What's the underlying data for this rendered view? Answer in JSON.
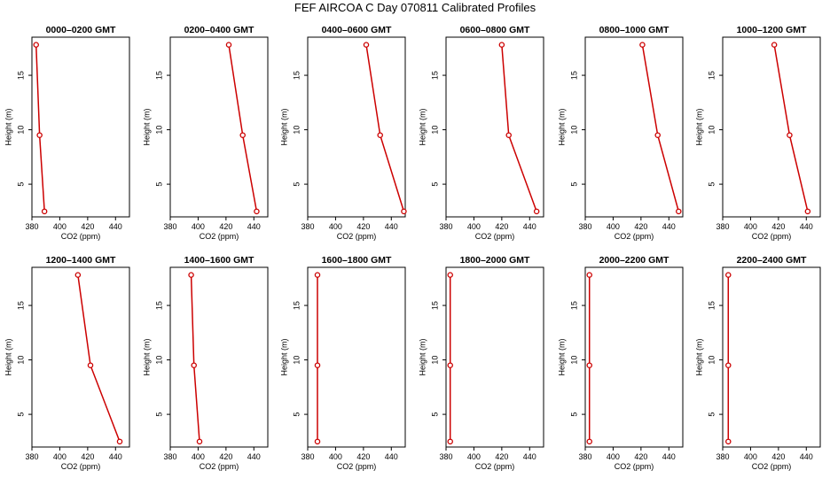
{
  "title": "FEF AIRCOA C  Day 070811  Calibrated Profiles",
  "colors": {
    "profile": "#cc0000",
    "axis": "#000000"
  },
  "chart_data": [
    {
      "type": "line",
      "title": "0000–0200 GMT",
      "xlabel": "CO2 (ppm)",
      "ylabel": "Height (m)",
      "xlim": [
        380,
        450
      ],
      "ylim": [
        2,
        18.5
      ],
      "xticks": [
        380,
        400,
        420,
        440
      ],
      "yticks": [
        5,
        10,
        15
      ],
      "heights": [
        2.5,
        9.5,
        17.8
      ],
      "values": [
        389,
        385.5,
        383
      ]
    },
    {
      "type": "line",
      "title": "0200–0400 GMT",
      "xlabel": "CO2 (ppm)",
      "ylabel": "Height (m)",
      "xlim": [
        380,
        450
      ],
      "ylim": [
        2,
        18.5
      ],
      "xticks": [
        380,
        400,
        420,
        440
      ],
      "yticks": [
        5,
        10,
        15
      ],
      "heights": [
        2.5,
        9.5,
        17.8
      ],
      "values": [
        442,
        432,
        422
      ]
    },
    {
      "type": "line",
      "title": "0400–0600 GMT",
      "xlabel": "CO2 (ppm)",
      "ylabel": "Height (m)",
      "xlim": [
        380,
        450
      ],
      "ylim": [
        2,
        18.5
      ],
      "xticks": [
        380,
        400,
        420,
        440
      ],
      "yticks": [
        5,
        10,
        15
      ],
      "heights": [
        2.5,
        9.5,
        17.8
      ],
      "values": [
        449,
        432,
        422
      ]
    },
    {
      "type": "line",
      "title": "0600–0800 GMT",
      "xlabel": "CO2 (ppm)",
      "ylabel": "Height (m)",
      "xlim": [
        380,
        450
      ],
      "ylim": [
        2,
        18.5
      ],
      "xticks": [
        380,
        400,
        420,
        440
      ],
      "yticks": [
        5,
        10,
        15
      ],
      "heights": [
        2.5,
        9.5,
        17.8
      ],
      "values": [
        445,
        425,
        420
      ]
    },
    {
      "type": "line",
      "title": "0800–1000 GMT",
      "xlabel": "CO2 (ppm)",
      "ylabel": "Height (m)",
      "xlim": [
        380,
        450
      ],
      "ylim": [
        2,
        18.5
      ],
      "xticks": [
        380,
        400,
        420,
        440
      ],
      "yticks": [
        5,
        10,
        15
      ],
      "heights": [
        2.5,
        9.5,
        17.8
      ],
      "values": [
        447,
        432,
        421
      ]
    },
    {
      "type": "line",
      "title": "1000–1200 GMT",
      "xlabel": "CO2 (ppm)",
      "ylabel": "Height (m)",
      "xlim": [
        380,
        450
      ],
      "ylim": [
        2,
        18.5
      ],
      "xticks": [
        380,
        400,
        420,
        440
      ],
      "yticks": [
        5,
        10,
        15
      ],
      "heights": [
        2.5,
        9.5,
        17.8
      ],
      "values": [
        441,
        428,
        417
      ]
    },
    {
      "type": "line",
      "title": "1200–1400 GMT",
      "xlabel": "CO2 (ppm)",
      "ylabel": "Height (m)",
      "xlim": [
        380,
        450
      ],
      "ylim": [
        2,
        18.5
      ],
      "xticks": [
        380,
        400,
        420,
        440
      ],
      "yticks": [
        5,
        10,
        15
      ],
      "heights": [
        2.5,
        9.5,
        17.8
      ],
      "values": [
        443,
        422,
        413
      ]
    },
    {
      "type": "line",
      "title": "1400–1600 GMT",
      "xlabel": "CO2 (ppm)",
      "ylabel": "Height (m)",
      "xlim": [
        380,
        450
      ],
      "ylim": [
        2,
        18.5
      ],
      "xticks": [
        380,
        400,
        420,
        440
      ],
      "yticks": [
        5,
        10,
        15
      ],
      "heights": [
        2.5,
        9.5,
        17.8
      ],
      "values": [
        401,
        397,
        395
      ]
    },
    {
      "type": "line",
      "title": "1600–1800 GMT",
      "xlabel": "CO2 (ppm)",
      "ylabel": "Height (m)",
      "xlim": [
        380,
        450
      ],
      "ylim": [
        2,
        18.5
      ],
      "xticks": [
        380,
        400,
        420,
        440
      ],
      "yticks": [
        5,
        10,
        15
      ],
      "heights": [
        2.5,
        9.5,
        17.8
      ],
      "values": [
        387,
        387,
        387
      ]
    },
    {
      "type": "line",
      "title": "1800–2000 GMT",
      "xlabel": "CO2 (ppm)",
      "ylabel": "Height (m)",
      "xlim": [
        380,
        450
      ],
      "ylim": [
        2,
        18.5
      ],
      "xticks": [
        380,
        400,
        420,
        440
      ],
      "yticks": [
        5,
        10,
        15
      ],
      "heights": [
        2.5,
        9.5,
        17.8
      ],
      "values": [
        383,
        383,
        383
      ]
    },
    {
      "type": "line",
      "title": "2000–2200 GMT",
      "xlabel": "CO2 (ppm)",
      "ylabel": "Height (m)",
      "xlim": [
        380,
        450
      ],
      "ylim": [
        2,
        18.5
      ],
      "xticks": [
        380,
        400,
        420,
        440
      ],
      "yticks": [
        5,
        10,
        15
      ],
      "heights": [
        2.5,
        9.5,
        17.8
      ],
      "values": [
        383,
        383,
        383
      ]
    },
    {
      "type": "line",
      "title": "2200–2400 GMT",
      "xlabel": "CO2 (ppm)",
      "ylabel": "Height (m)",
      "xlim": [
        380,
        450
      ],
      "ylim": [
        2,
        18.5
      ],
      "xticks": [
        380,
        400,
        420,
        440
      ],
      "yticks": [
        5,
        10,
        15
      ],
      "heights": [
        2.5,
        9.5,
        17.8
      ],
      "values": [
        384,
        384,
        384
      ]
    }
  ]
}
